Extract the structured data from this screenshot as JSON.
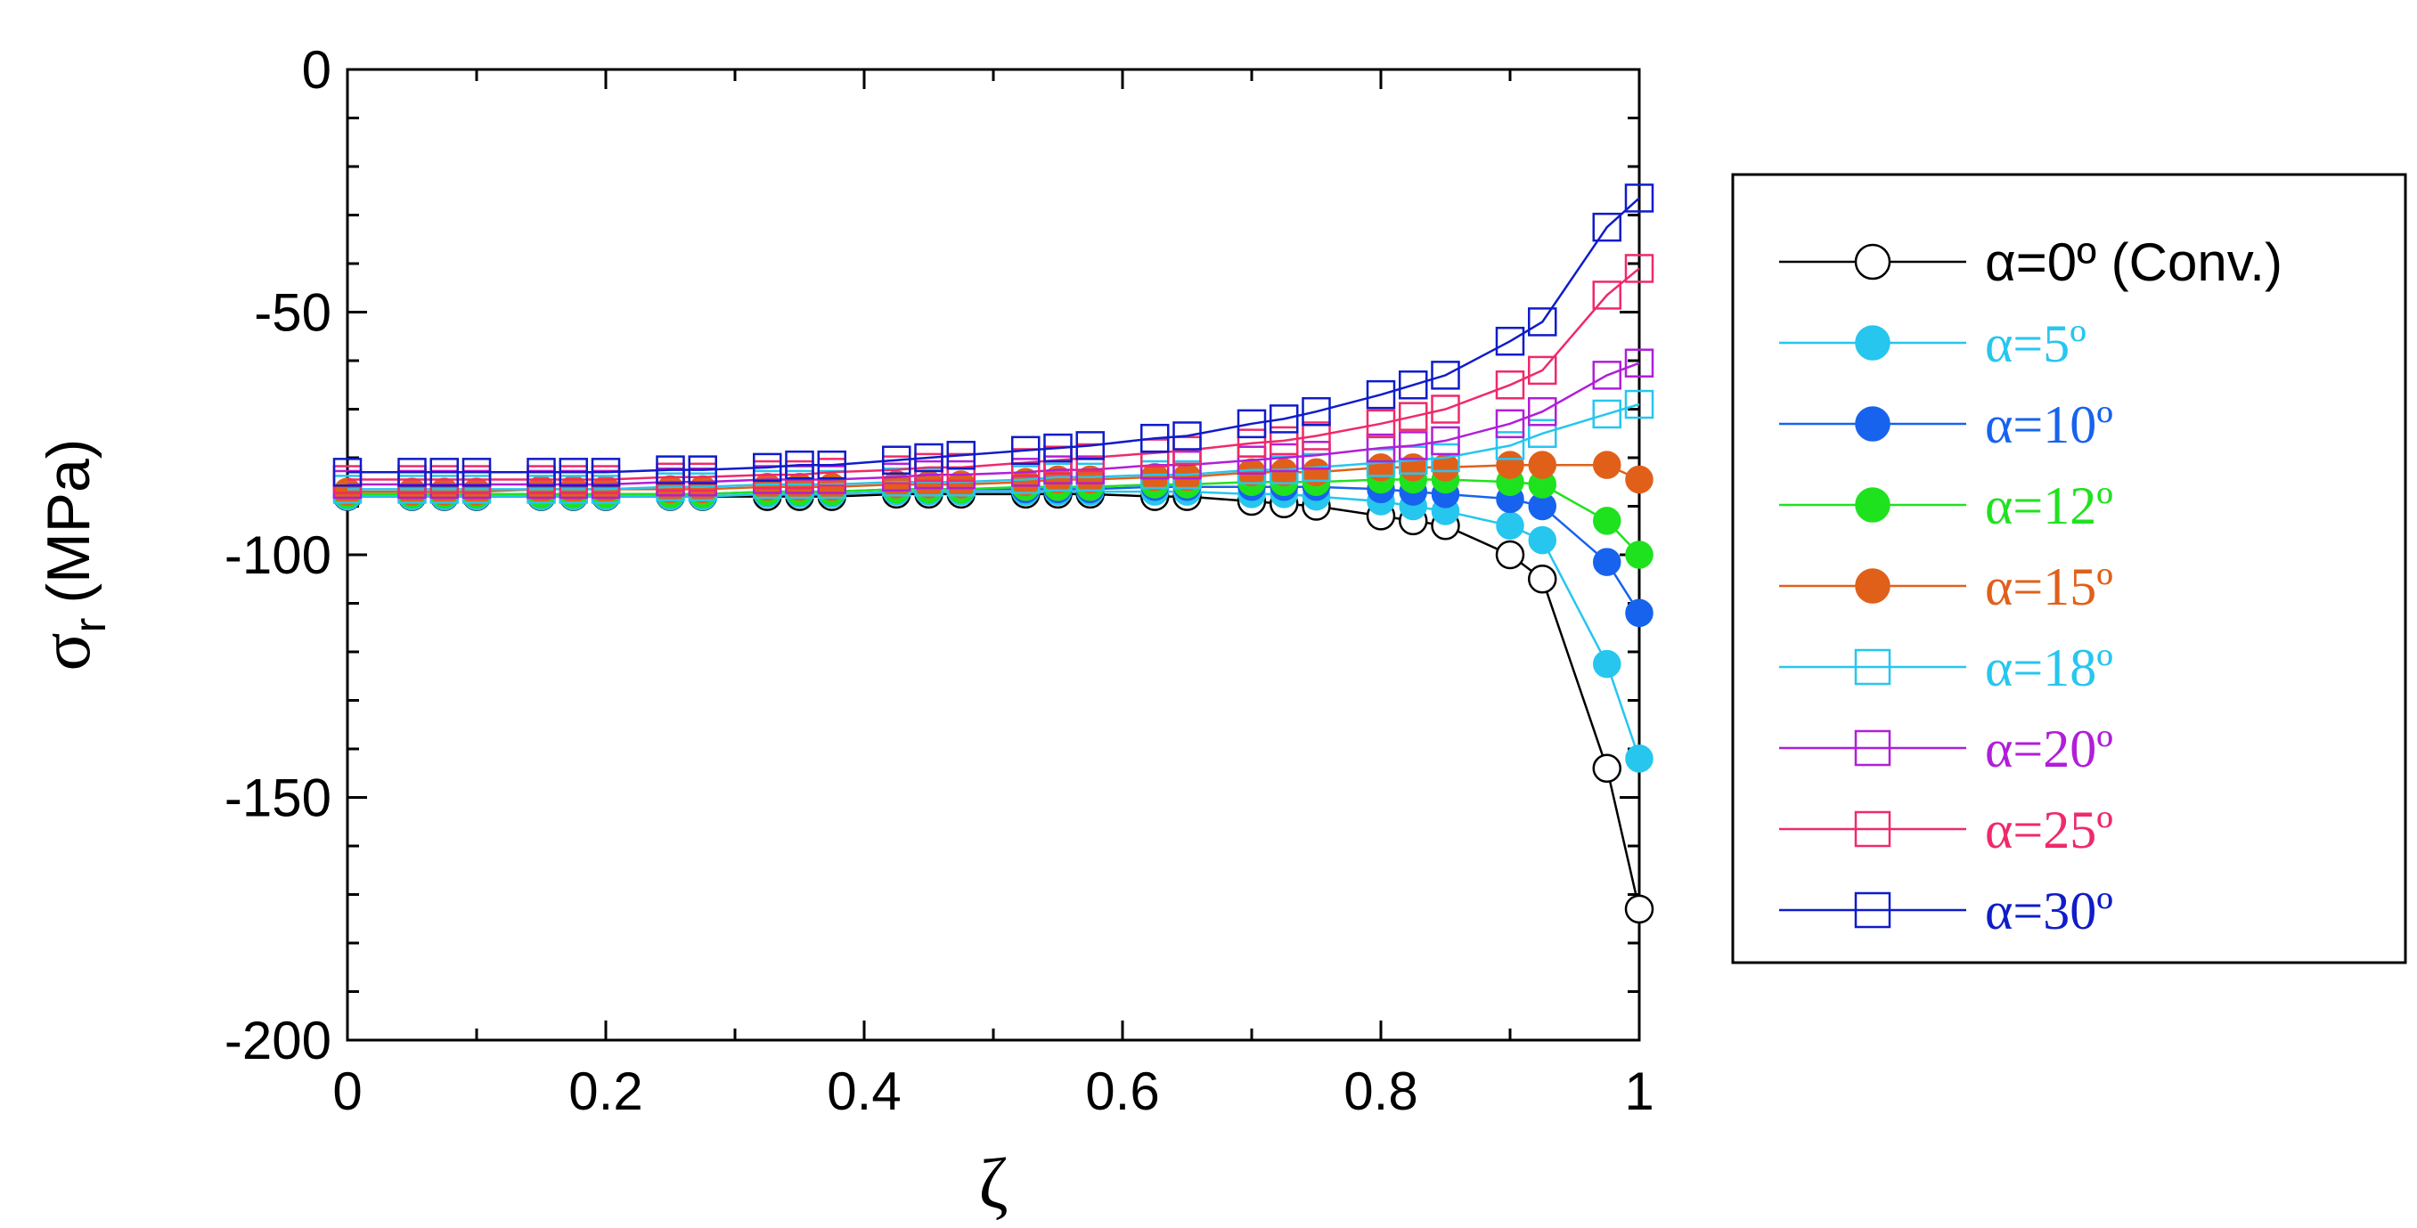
{
  "chart_data": {
    "type": "line",
    "xlabel": "ζ",
    "ylabel_symbol": "σ",
    "ylabel_subscript": "r",
    "ylabel_unit": "(MPa)",
    "xlim": [
      0,
      1
    ],
    "ylim": [
      -200,
      0
    ],
    "xticks": [
      0,
      0.2,
      0.4,
      0.6,
      0.8,
      1
    ],
    "xtick_labels": [
      "0",
      "0.2",
      "0.4",
      "0.6",
      "0.8",
      "1"
    ],
    "yticks": [
      0,
      -50,
      -100,
      -150,
      -200
    ],
    "ytick_labels": [
      "0",
      "-50",
      "-100",
      "-150",
      "-200"
    ],
    "grid": false,
    "legend_position": "right",
    "x": [
      0,
      0.05,
      0.075,
      0.1,
      0.15,
      0.175,
      0.2,
      0.25,
      0.275,
      0.325,
      0.35,
      0.375,
      0.425,
      0.45,
      0.475,
      0.525,
      0.55,
      0.575,
      0.625,
      0.65,
      0.7,
      0.725,
      0.75,
      0.8,
      0.825,
      0.85,
      0.9,
      0.925,
      0.975,
      1
    ],
    "series": [
      {
        "name": "α=0º (Conv.)",
        "color": "#000000",
        "marker": "circle-open",
        "values": [
          -88,
          -88,
          -88,
          -88,
          -88,
          -88,
          -88,
          -88,
          -88,
          -88,
          -88,
          -88,
          -87.5,
          -87.5,
          -87.5,
          -87.5,
          -87.5,
          -87.5,
          -88,
          -88,
          -89,
          -89.5,
          -90,
          -92,
          -93,
          -94,
          -100,
          -105,
          -144,
          -173
        ]
      },
      {
        "name": "α=5º",
        "color": "#26c6ef",
        "marker": "circle-filled",
        "values": [
          -88,
          -88,
          -88,
          -88,
          -88,
          -88,
          -88,
          -88,
          -88,
          -87.5,
          -87.5,
          -87.5,
          -87,
          -87,
          -87,
          -87,
          -87,
          -87,
          -87,
          -87,
          -87.5,
          -87.5,
          -88,
          -89,
          -90,
          -91,
          -94,
          -97,
          -122.5,
          -142
        ]
      },
      {
        "name": "α=10º",
        "color": "#1763ee",
        "marker": "circle-filled",
        "values": [
          -87.5,
          -87.5,
          -87.5,
          -87.5,
          -87.5,
          -87.5,
          -87.5,
          -87.5,
          -87.5,
          -87,
          -87,
          -87,
          -86.5,
          -86.5,
          -86.5,
          -86.5,
          -86.5,
          -86.5,
          -86,
          -86,
          -86,
          -86,
          -86,
          -86.5,
          -87,
          -87.5,
          -88.5,
          -90,
          -101.5,
          -112
        ]
      },
      {
        "name": "α=12º",
        "color": "#1fe21f",
        "marker": "circle-filled",
        "values": [
          -87.5,
          -87.5,
          -87.5,
          -87.5,
          -87.5,
          -87.5,
          -87.5,
          -87.5,
          -87.5,
          -87,
          -87,
          -87,
          -86.5,
          -86.5,
          -86.5,
          -86,
          -86,
          -86,
          -85.5,
          -85.5,
          -85,
          -85,
          -85,
          -84.5,
          -84.5,
          -84.5,
          -85,
          -85.5,
          -93,
          -100
        ]
      },
      {
        "name": "α=15º",
        "color": "#e0601a",
        "marker": "circle-filled",
        "values": [
          -87,
          -87,
          -87,
          -87,
          -86.5,
          -86.5,
          -86.5,
          -86.5,
          -86.5,
          -86,
          -86,
          -86,
          -85.5,
          -85.5,
          -85.5,
          -85,
          -84.5,
          -84.5,
          -84,
          -84,
          -83,
          -83,
          -83,
          -82,
          -82,
          -82,
          -81.5,
          -81.5,
          -81.5,
          -84.5
        ]
      },
      {
        "name": "α=18º",
        "color": "#26c6ef",
        "marker": "square-open",
        "values": [
          -86.5,
          -86.5,
          -86.5,
          -86.5,
          -86.5,
          -86.5,
          -86.5,
          -86,
          -86,
          -85.5,
          -85.5,
          -85.5,
          -85,
          -85,
          -85,
          -84.5,
          -84,
          -84,
          -83.5,
          -83.5,
          -82.5,
          -82.5,
          -82,
          -81,
          -80.5,
          -80,
          -77.5,
          -75,
          -71,
          -69
        ]
      },
      {
        "name": "α=20º",
        "color": "#b01fd8",
        "marker": "square-open",
        "values": [
          -85.5,
          -85.5,
          -85.5,
          -85.5,
          -85.5,
          -85.5,
          -85.5,
          -85,
          -85,
          -84.5,
          -84.5,
          -84.5,
          -84,
          -83.5,
          -83.5,
          -83,
          -82.5,
          -82.5,
          -81.5,
          -81.5,
          -80.5,
          -80,
          -79.5,
          -78,
          -77.5,
          -76.5,
          -73,
          -70.5,
          -63,
          -60.5
        ]
      },
      {
        "name": "α=25º",
        "color": "#ef2a6a",
        "marker": "square-open",
        "values": [
          -84.5,
          -84.5,
          -84.5,
          -84.5,
          -84.5,
          -84.5,
          -84.5,
          -84,
          -84,
          -83.5,
          -83.5,
          -83,
          -82.5,
          -82,
          -82,
          -81,
          -80.5,
          -80,
          -79,
          -78.5,
          -77,
          -76.5,
          -75.5,
          -73,
          -71.5,
          -70,
          -65,
          -62,
          -46.5,
          -41
        ]
      },
      {
        "name": "α=30º",
        "color": "#0f1cc9",
        "marker": "square-open",
        "values": [
          -83,
          -83,
          -83,
          -83,
          -83,
          -83,
          -83,
          -82.5,
          -82.5,
          -82,
          -81.5,
          -81.5,
          -80.5,
          -80,
          -79.5,
          -78.5,
          -78,
          -77.5,
          -76,
          -75.5,
          -73,
          -72,
          -70.5,
          -67,
          -65,
          -63,
          -56,
          -52,
          -32.5,
          -26.5
        ]
      }
    ]
  }
}
